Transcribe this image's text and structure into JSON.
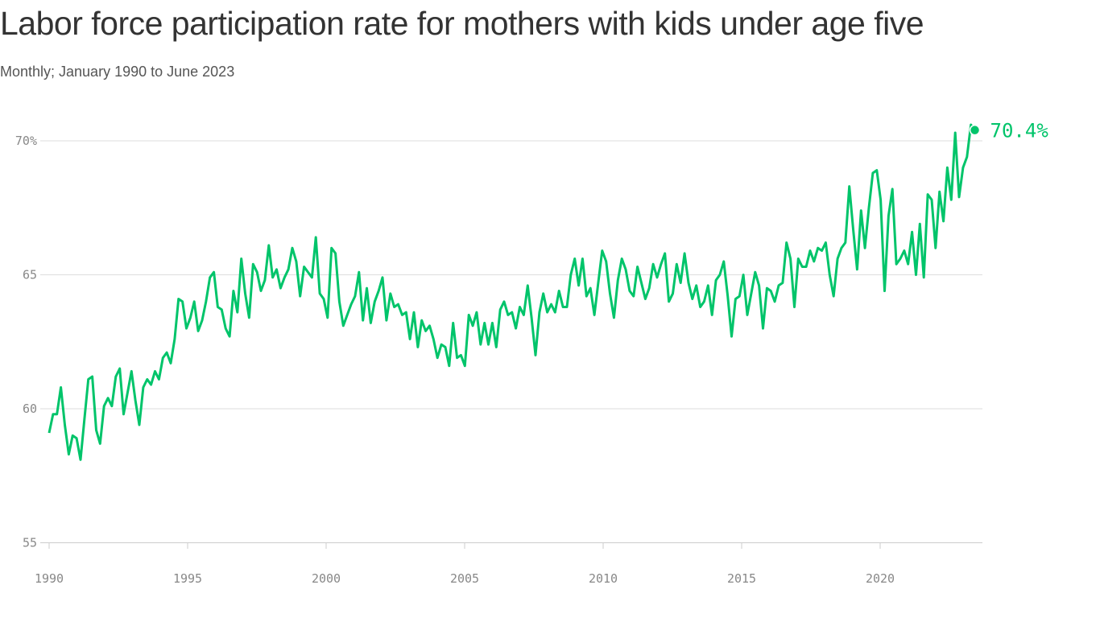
{
  "title": "Labor force participation rate for mothers with kids under age five",
  "subtitle": "Monthly; January 1990 to June 2023",
  "chart_data": {
    "type": "line",
    "title": "Labor force participation rate for mothers with kids under age five",
    "subtitle": "Monthly; January 1990 to June 2023",
    "x_start": "1990-01",
    "x_end": "2023-06",
    "xlim": [
      1990,
      2023.5
    ],
    "ylim": [
      55,
      70.5
    ],
    "x_ticks": [
      1990,
      1995,
      2000,
      2005,
      2010,
      2015,
      2020
    ],
    "x_tick_labels": [
      "1990",
      "1995",
      "2000",
      "2005",
      "2010",
      "2015",
      "2020"
    ],
    "y_ticks": [
      55,
      60,
      65,
      70
    ],
    "y_tick_labels": [
      "55",
      "60",
      "65",
      "70%"
    ],
    "grid": "horizontal",
    "color": "#00c46a",
    "end_label": "70.4%",
    "end_value": 70.4,
    "values": [
      59.1,
      59.8,
      59.8,
      60.8,
      59.4,
      58.3,
      59.0,
      58.9,
      58.1,
      59.6,
      61.1,
      61.2,
      59.2,
      58.7,
      60.1,
      60.4,
      60.1,
      61.2,
      61.5,
      59.8,
      60.6,
      61.4,
      60.3,
      59.4,
      60.8,
      61.1,
      60.9,
      61.4,
      61.1,
      61.9,
      62.1,
      61.7,
      62.6,
      64.1,
      64.0,
      63.0,
      63.4,
      64.0,
      62.9,
      63.3,
      64.0,
      64.9,
      65.1,
      63.8,
      63.7,
      63.0,
      62.7,
      64.4,
      63.6,
      65.6,
      64.3,
      63.4,
      65.4,
      65.1,
      64.4,
      64.8,
      66.1,
      64.9,
      65.2,
      64.5,
      64.9,
      65.2,
      66.0,
      65.5,
      64.2,
      65.3,
      65.1,
      64.9,
      66.4,
      64.3,
      64.1,
      63.4,
      66.0,
      65.8,
      64.0,
      63.1,
      63.5,
      63.9,
      64.2,
      65.1,
      63.3,
      64.5,
      63.2,
      64.0,
      64.4,
      64.9,
      63.3,
      64.3,
      63.8,
      63.9,
      63.5,
      63.6,
      62.6,
      63.6,
      62.3,
      63.3,
      62.9,
      63.1,
      62.6,
      61.9,
      62.4,
      62.3,
      61.6,
      63.2,
      61.9,
      62.0,
      61.6,
      63.5,
      63.1,
      63.6,
      62.4,
      63.2,
      62.4,
      63.2,
      62.3,
      63.7,
      64.0,
      63.5,
      63.6,
      63.0,
      63.8,
      63.5,
      64.6,
      63.4,
      62.0,
      63.6,
      64.3,
      63.6,
      63.9,
      63.6,
      64.4,
      63.8,
      63.8,
      65.0,
      65.6,
      64.6,
      65.6,
      64.2,
      64.5,
      63.5,
      64.7,
      65.9,
      65.5,
      64.3,
      63.4,
      64.8,
      65.6,
      65.2,
      64.4,
      64.2,
      65.3,
      64.7,
      64.1,
      64.5,
      65.4,
      64.9,
      65.4,
      65.8,
      64.0,
      64.3,
      65.4,
      64.7,
      65.8,
      64.7,
      64.1,
      64.6,
      63.8,
      64.0,
      64.6,
      63.5,
      64.8,
      65.0,
      65.5,
      64.2,
      62.7,
      64.1,
      64.2,
      65.0,
      63.5,
      64.3,
      65.1,
      64.6,
      63.0,
      64.5,
      64.4,
      64.0,
      64.6,
      64.7,
      66.2,
      65.6,
      63.8,
      65.6,
      65.3,
      65.3,
      65.9,
      65.5,
      66.0,
      65.9,
      66.2,
      65.0,
      64.2,
      65.6,
      66.0,
      66.2,
      68.3,
      66.7,
      65.2,
      67.4,
      66.0,
      67.5,
      68.8,
      68.9,
      67.8,
      64.4,
      67.2,
      68.2,
      65.4,
      65.6,
      65.9,
      65.4,
      66.6,
      65.0,
      66.9,
      64.9,
      68.0,
      67.8,
      66.0,
      68.1,
      67.0,
      69.0,
      67.8,
      70.3,
      67.9,
      69.0,
      69.4,
      70.6,
      70.4
    ]
  }
}
